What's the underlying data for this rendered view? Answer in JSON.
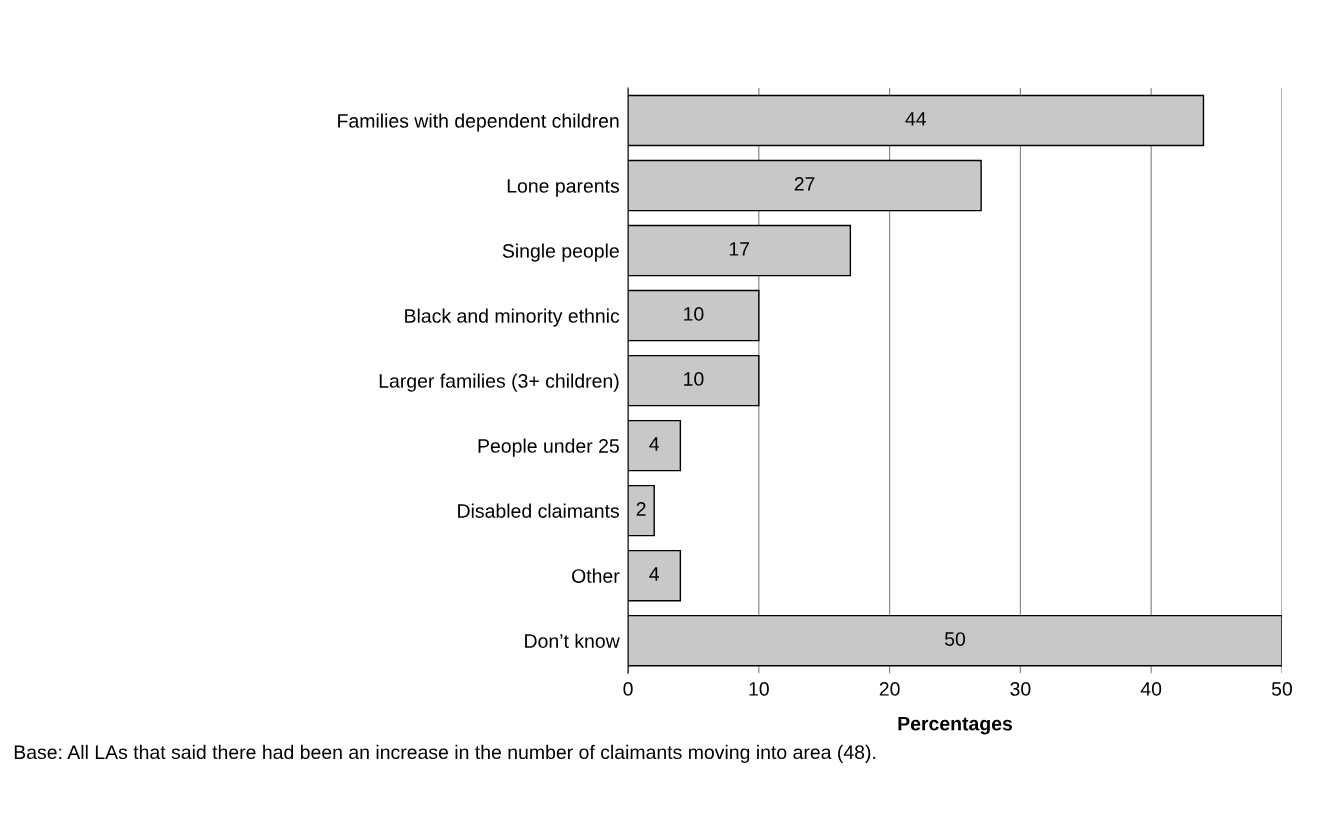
{
  "chart_data": {
    "type": "bar",
    "orientation": "horizontal",
    "categories": [
      "Families with dependent children",
      "Lone parents",
      "Single people",
      "Black and minority ethnic",
      "Larger families (3+ children)",
      "People under 25",
      "Disabled claimants",
      "Other",
      "Don’t know"
    ],
    "values": [
      44,
      27,
      17,
      10,
      10,
      4,
      2,
      4,
      50
    ],
    "color": "#c8c8c8",
    "data_labels": true,
    "xlabel": "Percentages",
    "xlim": [
      0,
      50
    ],
    "xticks": [
      0,
      10,
      20,
      30,
      40,
      50
    ],
    "grid": "x",
    "legend": false,
    "annotations": [
      "Base: All LAs that said there had been an increase in the number of claimants moving into area (48)."
    ]
  }
}
